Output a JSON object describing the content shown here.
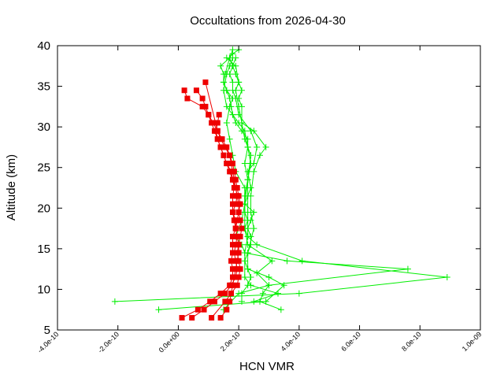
{
  "chart_data": {
    "type": "scatter",
    "title": "Occultations from 2026-04-30",
    "xlabel": "HCN VMR",
    "ylabel": "Altitude (km)",
    "xlim": [
      -4e-10,
      1e-09
    ],
    "ylim": [
      5,
      40
    ],
    "x_tick_labels": [
      "-4.0e-10",
      "-2.0e-10",
      "0.0e+00",
      "2.0e-10",
      "4.0e-10",
      "6.0e-10",
      "8.0e-10",
      "1.0e-09"
    ],
    "x_tick_values": [
      -4e-10,
      -2e-10,
      0,
      2e-10,
      4e-10,
      6e-10,
      8e-10,
      1e-09
    ],
    "y_tick_labels": [
      "5",
      "10",
      "15",
      "20",
      "25",
      "30",
      "35",
      "40"
    ],
    "y_tick_values": [
      5,
      10,
      15,
      20,
      25,
      30,
      35,
      40
    ],
    "grid": false,
    "legend": "none",
    "colors": {
      "green": "#00ee00",
      "red": "#ee0000"
    },
    "series": [
      {
        "color": "#00ee00",
        "marker": "plus",
        "x": [
          2.1e-10,
          2.1e-10,
          2.3e-10,
          2.4e-10,
          2.3e-10,
          2.2e-10,
          2.3e-10,
          2.4e-10,
          2.4e-10,
          2.3e-10,
          2.4e-10,
          2.5e-10,
          2.2e-10,
          2.2e-10,
          1.9e-10,
          1.8e-10,
          1.7e-10,
          1.6e-10,
          1.7e-10,
          1.8e-10,
          1.6e-10,
          1.5e-10,
          1.55e-10,
          1.7e-10,
          1.8e-10
        ],
        "y": [
          8.5,
          9.5,
          10.5,
          11.5,
          12.5,
          13.5,
          14.5,
          15.5,
          16.5,
          17.5,
          18.5,
          19.5,
          20.5,
          22.5,
          24.5,
          26.5,
          28.5,
          30.5,
          32.5,
          33.5,
          34.5,
          35.5,
          36.5,
          38.5,
          39.5
        ]
      },
      {
        "color": "#00ee00",
        "marker": "plus",
        "x": [
          -2.1e-10,
          4e-10,
          8.9e-10,
          4.1e-10,
          2.6e-10,
          2.3e-10,
          2.2e-10,
          2.3e-10,
          2.2e-10,
          2.2e-10,
          2.3e-10,
          2.2e-10,
          2.3e-10,
          2.3e-10,
          2.1e-10,
          1.9e-10,
          1.8e-10,
          1.75e-10,
          1.7e-10,
          1.6e-10,
          1.5e-10,
          1.5e-10,
          1.4e-10,
          1.7e-10
        ],
        "y": [
          8.5,
          9.5,
          11.5,
          13.5,
          15.5,
          16.5,
          17.5,
          18.5,
          19.5,
          21.5,
          23.5,
          25.5,
          27.5,
          28.5,
          29.5,
          30.5,
          31.5,
          32.5,
          33.5,
          34.5,
          35.5,
          36.5,
          37.5,
          38.5
        ]
      },
      {
        "color": "#00ee00",
        "marker": "plus",
        "x": [
          -6.5e-11,
          2.9e-10,
          3.5e-10,
          3e-10,
          2.3e-10,
          2.3e-10,
          2.5e-10,
          2.4e-10,
          2.4e-10,
          2.5e-10,
          2.7e-10,
          2.9e-10,
          2.5e-10,
          2.1e-10,
          2.1e-10,
          2e-10,
          2.1e-10,
          2e-10,
          1.9e-10,
          1.8e-10,
          1.7e-10,
          1.8e-10,
          2e-10
        ],
        "y": [
          7.5,
          8.5,
          10.5,
          11.5,
          12.5,
          14.5,
          17.5,
          19.5,
          21.5,
          24.5,
          26.5,
          27.5,
          29.5,
          30.5,
          32.5,
          33.5,
          34.5,
          35.5,
          36.5,
          37.5,
          38.5,
          39.0,
          39.5
        ]
      },
      {
        "color": "#00ee00",
        "marker": "plus",
        "x": [
          1.5e-10,
          2e-10,
          3e-10,
          7.6e-10,
          3.6e-10,
          2.2e-10,
          2.1e-10,
          1.9e-10,
          2.1e-10,
          2.2e-10,
          2.4e-10,
          2.3e-10,
          2.5e-10,
          2.6e-10,
          2.4e-10,
          2e-10,
          1.9e-10,
          1.8e-10,
          1.8e-10,
          1.7e-10,
          1.8e-10,
          1.9e-10
        ],
        "y": [
          7.5,
          9.5,
          10.5,
          12.5,
          13.5,
          14.5,
          15.5,
          16.5,
          18.5,
          20.5,
          22.5,
          24.5,
          25.5,
          27.5,
          29.5,
          31.5,
          33.5,
          34.5,
          35.5,
          36.5,
          37.5,
          38.5
        ]
      },
      {
        "color": "#00ee00",
        "marker": "plus",
        "x": [
          3.4e-10,
          2.7e-10,
          2.8e-10,
          3e-10,
          2.6e-10,
          3.1e-10,
          2.3e-10,
          2.2e-10,
          2.2e-10,
          2.3e-10,
          2.4e-10,
          2.2e-10,
          2.1e-10,
          2e-10,
          1.9e-10,
          2e-10,
          1.9e-10,
          1.6e-10
        ],
        "y": [
          7.5,
          8.5,
          9.5,
          10.5,
          12.0,
          13.5,
          15.5,
          17.5,
          20.5,
          23.5,
          26.5,
          28.5,
          30.5,
          32.5,
          34.5,
          35.5,
          37.5,
          38.5
        ]
      },
      {
        "color": "#00ee00",
        "marker": "plus",
        "x": [
          2.5e-10,
          3.3e-10,
          2.4e-10,
          2.2e-10,
          2.2e-10,
          2.3e-10,
          2.3e-10,
          2.3e-10,
          2.3e-10,
          2.4e-10,
          2.3e-10,
          2.2e-10,
          2e-10,
          1.8e-10,
          1.6e-10,
          1.5e-10,
          1.6e-10,
          1.7e-10,
          1.8e-10
        ],
        "y": [
          8.5,
          9.5,
          10.5,
          11.5,
          14.5,
          16.5,
          19.5,
          21.5,
          23.5,
          25.5,
          27.5,
          29.5,
          30.5,
          31.5,
          32.5,
          34.5,
          36.5,
          37.5,
          38.5
        ]
      },
      {
        "color": "#ee0000",
        "marker": "square",
        "x": [
          1.2e-11,
          6.5e-11,
          1.05e-10,
          1.4e-10,
          1.7e-10,
          1.8e-10,
          1.8e-10,
          1.75e-10,
          1.8e-10,
          1.8e-10,
          1.8e-10,
          1.9e-10,
          1.9e-10,
          1.8e-10,
          1.8e-10,
          1.8e-10,
          1.85e-10,
          1.8e-10,
          1.75e-10,
          1.6e-10,
          1.5e-10,
          1.4e-10,
          1.3e-10,
          1.2e-10,
          1.1e-10,
          1e-10,
          9e-11,
          8e-11,
          6e-11
        ],
        "y": [
          6.5,
          7.5,
          8.5,
          9.5,
          10.5,
          11.5,
          12.5,
          13.5,
          14.5,
          15.5,
          16.5,
          17.5,
          18.5,
          19.5,
          20.5,
          21.5,
          22.5,
          23.5,
          24.5,
          25.5,
          26.5,
          27.5,
          28.5,
          29.5,
          30.5,
          31.5,
          32.5,
          33.5,
          34.5
        ]
      },
      {
        "color": "#ee0000",
        "marker": "square",
        "x": [
          1.4e-10,
          1.6e-10,
          1.7e-10,
          1.75e-10,
          1.8e-10,
          1.85e-10,
          1.9e-10,
          1.95e-10,
          2e-10,
          2e-10,
          1.95e-10,
          1.9e-10,
          1.95e-10,
          2e-10,
          2e-10,
          1.95e-10,
          1.9e-10,
          1.8e-10,
          1.7e-10,
          1.6e-10,
          1.5e-10,
          1.4e-10,
          1.3e-10,
          1.25e-10,
          1.3e-10,
          1.35e-10
        ],
        "y": [
          6.5,
          7.5,
          8.5,
          9.5,
          10.5,
          11.5,
          12.5,
          13.5,
          14.5,
          15.5,
          16.5,
          17.5,
          18.5,
          19.5,
          20.5,
          21.5,
          22.5,
          23.5,
          24.5,
          25.5,
          26.5,
          27.5,
          28.5,
          29.5,
          30.5,
          31.5
        ]
      },
      {
        "color": "#ee0000",
        "marker": "square",
        "x": [
          4.5e-11,
          8.5e-11,
          1.2e-10,
          1.55e-10,
          1.75e-10,
          1.9e-10,
          1.95e-10,
          1.9e-10,
          1.85e-10,
          1.9e-10,
          1.95e-10,
          1.9e-10,
          1.85e-10,
          1.8e-10,
          1.9e-10,
          1.95e-10,
          1.9e-10,
          1.85e-10,
          1.8e-10,
          1.75e-10,
          1.7e-10,
          1.6e-10,
          1.45e-10,
          1.3e-10,
          1.15e-10,
          1e-10,
          8e-11,
          3e-11,
          2e-11
        ],
        "y": [
          6.5,
          7.5,
          8.5,
          9.5,
          10.5,
          11.5,
          12.5,
          13.5,
          14.5,
          15.5,
          16.5,
          17.5,
          18.5,
          19.5,
          20.5,
          21.5,
          22.5,
          23.5,
          24.5,
          25.5,
          26.5,
          27.5,
          28.5,
          29.5,
          30.5,
          31.5,
          32.5,
          33.5,
          34.5
        ]
      },
      {
        "color": "#ee0000",
        "marker": "square",
        "x": [
          1.1e-10,
          1.55e-10,
          1.95e-10,
          2e-10,
          2.05e-10,
          2e-10,
          1.95e-10,
          2e-10,
          2.05e-10,
          2.1e-10,
          2.05e-10,
          2e-10,
          2.05e-10,
          2e-10,
          1.95e-10,
          1.9e-10,
          1.85e-10,
          1.8e-10,
          1.7e-10,
          1.55e-10,
          1.4e-10,
          1.3e-10,
          9e-11
        ],
        "y": [
          6.5,
          8.5,
          10.5,
          11.5,
          12.5,
          13.5,
          14.5,
          15.5,
          16.5,
          17.5,
          18.5,
          19.5,
          20.5,
          21.5,
          22.5,
          23.5,
          24.5,
          25.5,
          26.5,
          27.5,
          28.5,
          29.5,
          35.5
        ]
      }
    ]
  }
}
